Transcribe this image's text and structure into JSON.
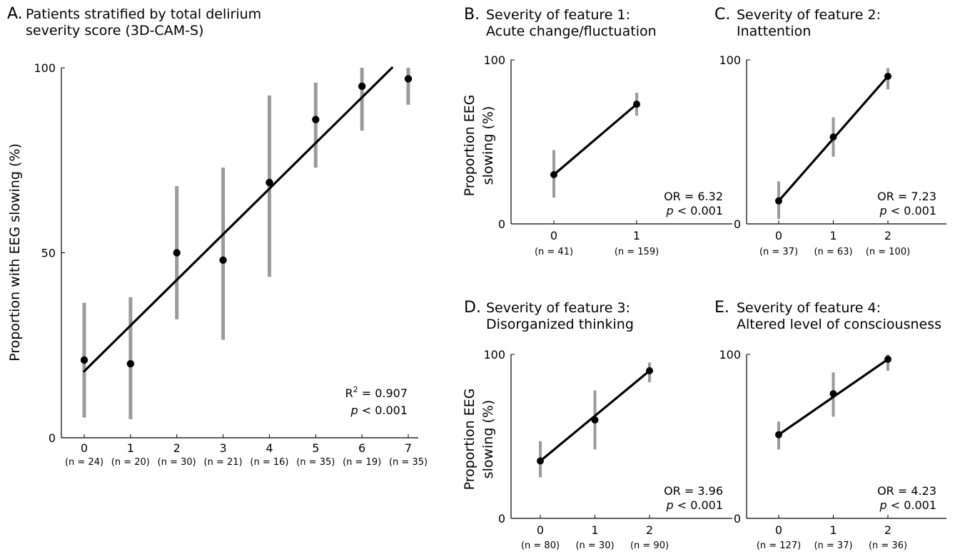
{
  "chart_data": [
    {
      "id": "A",
      "type": "scatter",
      "panel_letter": "A.",
      "title_lines": [
        "Patients stratified by total delirium",
        "severity score (3D-CAM-S)"
      ],
      "ylabel": "Proportion with EEG slowing (%)",
      "xlabel": "",
      "x": [
        0,
        1,
        2,
        3,
        4,
        5,
        6,
        7
      ],
      "n_labels": [
        "(n = 24)",
        "(n = 20)",
        "(n = 30)",
        "(n = 21)",
        "(n = 16)",
        "(n = 35)",
        "(n = 19)",
        "(n = 35)"
      ],
      "values": [
        21,
        20,
        50,
        48,
        69,
        86,
        95,
        97
      ],
      "err_low": [
        5.5,
        5,
        32,
        26.5,
        43.5,
        73,
        83,
        90
      ],
      "err_high": [
        36.5,
        38,
        68,
        73,
        92.5,
        96,
        100,
        100
      ],
      "fit_line": {
        "x": [
          0,
          6.65
        ],
        "y": [
          18,
          100
        ]
      },
      "yticks": [
        0,
        50,
        100
      ],
      "ylim": [
        0,
        100
      ],
      "xlim": [
        -0.5,
        7.5
      ],
      "stats": {
        "r2_prefix": "R",
        "r2_sup": "2",
        "r2_rest": " = 0.907",
        "p_label": "p",
        "p_rest": " < 0.001"
      }
    },
    {
      "id": "B",
      "type": "scatter",
      "panel_letter": "B.",
      "title_lines": [
        "Severity of feature 1:",
        "Acute change/fluctuation"
      ],
      "ylabel_lines": [
        "Proportion EEG",
        "slowing (%)"
      ],
      "x": [
        0,
        1
      ],
      "n_labels": [
        "(n = 41)",
        "(n = 159)"
      ],
      "values": [
        30,
        73
      ],
      "err_low": [
        16,
        66
      ],
      "err_high": [
        45,
        80
      ],
      "fit_line": {
        "x": [
          0,
          1
        ],
        "y": [
          30,
          73
        ]
      },
      "yticks": [
        0,
        100
      ],
      "ylim": [
        0,
        100
      ],
      "xlim": [
        -0.5,
        1.5
      ],
      "stats": {
        "or_text": "OR = 6.32",
        "p_label": "p",
        "p_rest": " < 0.001"
      }
    },
    {
      "id": "C",
      "type": "scatter",
      "panel_letter": "C.",
      "title_lines": [
        "Severity of feature 2:",
        "Inattention"
      ],
      "x": [
        0,
        1,
        2
      ],
      "n_labels": [
        "(n = 37)",
        "(n = 63)",
        "(n = 100)"
      ],
      "values": [
        14,
        53,
        90
      ],
      "err_low": [
        3,
        41,
        82
      ],
      "err_high": [
        26,
        65,
        95
      ],
      "fit_line": {
        "x": [
          0,
          2
        ],
        "y": [
          14,
          90
        ]
      },
      "yticks": [
        0,
        100
      ],
      "ylim": [
        0,
        100
      ],
      "xlim": [
        -0.5,
        2.5
      ],
      "stats": {
        "or_text": "OR = 7.23",
        "p_label": "p",
        "p_rest": " < 0.001"
      }
    },
    {
      "id": "D",
      "type": "scatter",
      "panel_letter": "D.",
      "title_lines": [
        "Severity of feature 3:",
        "Disorganized thinking"
      ],
      "ylabel_lines": [
        "Proportion EEG",
        "slowing (%)"
      ],
      "x": [
        0,
        1,
        2
      ],
      "n_labels": [
        "(n = 80)",
        "(n = 30)",
        "(n = 90)"
      ],
      "values": [
        35,
        60,
        90
      ],
      "err_low": [
        25,
        42,
        83
      ],
      "err_high": [
        47,
        78,
        95
      ],
      "fit_line": {
        "x": [
          0,
          2
        ],
        "y": [
          35,
          90
        ]
      },
      "yticks": [
        0,
        100
      ],
      "ylim": [
        0,
        100
      ],
      "xlim": [
        -0.5,
        2.5
      ],
      "stats": {
        "or_text": "OR = 3.96",
        "p_label": "p",
        "p_rest": " < 0.001"
      }
    },
    {
      "id": "E",
      "type": "scatter",
      "panel_letter": "E.",
      "title_lines": [
        "Severity of feature 4:",
        "Altered level of consciousness"
      ],
      "x": [
        0,
        1,
        2
      ],
      "n_labels": [
        "(n = 127)",
        "(n = 37)",
        "(n = 36)"
      ],
      "values": [
        51,
        76,
        97
      ],
      "err_low": [
        42,
        62,
        90
      ],
      "err_high": [
        59,
        89,
        100
      ],
      "fit_line": {
        "x": [
          0,
          2
        ],
        "y": [
          51,
          97
        ]
      },
      "yticks": [
        0,
        100
      ],
      "ylim": [
        0,
        100
      ],
      "xlim": [
        -0.5,
        2.5
      ],
      "stats": {
        "or_text": "OR = 4.23",
        "p_label": "p",
        "p_rest": " < 0.001"
      }
    }
  ],
  "colors": {
    "points": "#000000",
    "fit": "#000000",
    "errorbar": "#9a9a9a",
    "axis": "#000000"
  }
}
